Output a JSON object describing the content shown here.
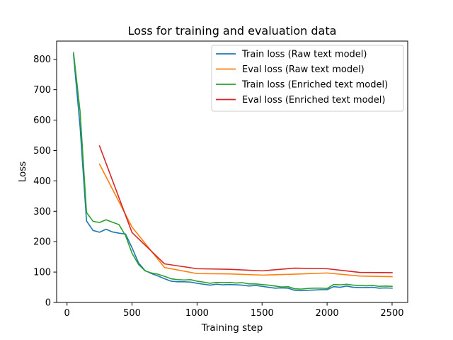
{
  "chart_data": {
    "type": "line",
    "title": "Loss for training and evaluation data",
    "xlabel": "Training step",
    "ylabel": "Loss",
    "xlim": [
      -80,
      2620
    ],
    "ylim": [
      0,
      860
    ],
    "xticks": [
      0,
      500,
      1000,
      1500,
      2000,
      2500
    ],
    "yticks": [
      0,
      100,
      200,
      300,
      400,
      500,
      600,
      700,
      800
    ],
    "grid": false,
    "legend_position": "top-right",
    "series": [
      {
        "name": "Train loss (Raw text model)",
        "color": "#1f77b4",
        "x": [
          50,
          100,
          150,
          200,
          250,
          300,
          350,
          400,
          450,
          500,
          550,
          600,
          650,
          700,
          750,
          800,
          850,
          900,
          950,
          1000,
          1050,
          1100,
          1150,
          1200,
          1250,
          1300,
          1350,
          1400,
          1450,
          1500,
          1550,
          1600,
          1650,
          1700,
          1750,
          1800,
          1850,
          1900,
          1950,
          2000,
          2050,
          2100,
          2150,
          2200,
          2250,
          2300,
          2350,
          2400,
          2450,
          2500
        ],
        "y": [
          815,
          580,
          268,
          237,
          231,
          241,
          232,
          228,
          225,
          180,
          130,
          105,
          95,
          87,
          78,
          70,
          68,
          68,
          67,
          63,
          60,
          57,
          60,
          58,
          59,
          58,
          57,
          54,
          56,
          53,
          50,
          47,
          48,
          47,
          40,
          39,
          40,
          41,
          42,
          42,
          52,
          50,
          54,
          50,
          49,
          49,
          50,
          47,
          48,
          47
        ]
      },
      {
        "name": "Eval loss (Raw text model)",
        "color": "#ff7f0e",
        "x": [
          250,
          500,
          750,
          1000,
          1250,
          1500,
          1750,
          2000,
          2250,
          2500
        ],
        "y": [
          455,
          248,
          115,
          95,
          94,
          90,
          93,
          97,
          87,
          85
        ]
      },
      {
        "name": "Train loss (Enriched text model)",
        "color": "#2ca02c",
        "x": [
          50,
          100,
          150,
          200,
          250,
          300,
          350,
          400,
          450,
          500,
          550,
          600,
          650,
          700,
          750,
          800,
          850,
          900,
          950,
          1000,
          1050,
          1100,
          1150,
          1200,
          1250,
          1300,
          1350,
          1400,
          1450,
          1500,
          1550,
          1600,
          1650,
          1700,
          1750,
          1800,
          1850,
          1900,
          1950,
          2000,
          2050,
          2100,
          2150,
          2200,
          2250,
          2300,
          2350,
          2400,
          2450,
          2500
        ],
        "y": [
          822,
          630,
          296,
          267,
          263,
          272,
          264,
          256,
          220,
          162,
          125,
          104,
          97,
          93,
          86,
          78,
          75,
          74,
          75,
          70,
          67,
          63,
          66,
          65,
          66,
          64,
          65,
          61,
          61,
          59,
          57,
          54,
          51,
          52,
          45,
          44,
          46,
          47,
          47,
          46,
          59,
          58,
          60,
          57,
          56,
          55,
          56,
          53,
          54,
          53
        ]
      },
      {
        "name": "Eval loss (Enriched text model)",
        "color": "#d62728",
        "x": [
          250,
          500,
          750,
          1000,
          1250,
          1500,
          1750,
          2000,
          2250,
          2500
        ],
        "y": [
          515,
          230,
          127,
          111,
          109,
          104,
          113,
          111,
          99,
          98
        ]
      }
    ]
  }
}
